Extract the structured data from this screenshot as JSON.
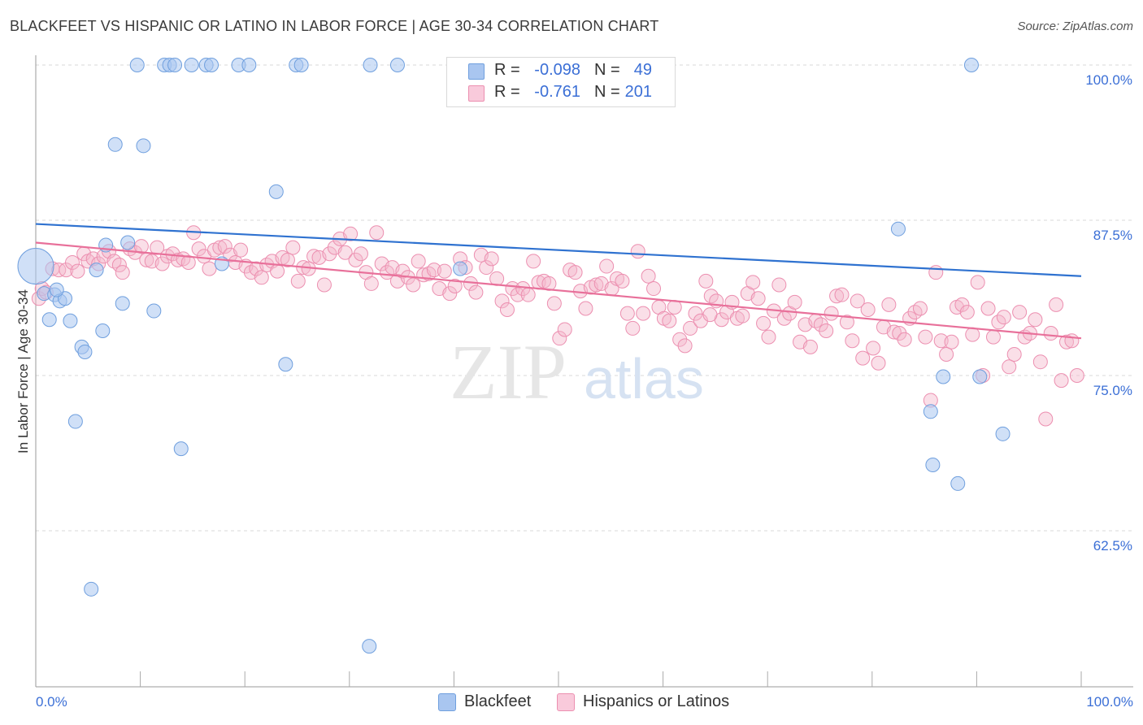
{
  "title": "BLACKFEET VS HISPANIC OR LATINO IN LABOR FORCE | AGE 30-34 CORRELATION CHART",
  "source": "Source: ZipAtlas.com",
  "legend": {
    "rows": [
      {
        "r_label": "R =",
        "r_value": "-0.098",
        "n_label": "N =",
        "n_value": "49"
      },
      {
        "r_label": "R =",
        "r_value": "-0.761",
        "n_label": "N =",
        "n_value": "201"
      }
    ]
  },
  "bottom_legend": {
    "series1": "Blackfeet",
    "series2": "Hispanics or Latinos"
  },
  "watermark": {
    "zip": "ZIP",
    "atlas": "atlas"
  },
  "colors": {
    "blackfeet_fill": "#a9c6f0",
    "blackfeet_stroke": "#6f9fde",
    "blackfeet_line": "#2f72d0",
    "hispanic_fill": "#f5b8cd",
    "hispanic_stroke": "#ec8fb0",
    "hispanic_line": "#e8709a",
    "tick_label": "#3b6fd6",
    "grid": "#d9d9d9"
  },
  "chart_data": {
    "type": "scatter",
    "title": "BLACKFEET VS HISPANIC OR LATINO IN LABOR FORCE | AGE 30-34 CORRELATION CHART",
    "xlabel": "",
    "ylabel": "In Labor Force | Age 30-34",
    "xlim": [
      0,
      100
    ],
    "ylim": [
      50,
      101
    ],
    "x_tick_labels": [
      "0.0%",
      "100.0%"
    ],
    "y_ticks": [
      62.5,
      75.0,
      87.5,
      100.0
    ],
    "y_tick_labels": [
      "62.5%",
      "75.0%",
      "87.5%",
      "100.0%"
    ],
    "grid": true,
    "series": [
      {
        "name": "Blackfeet",
        "trend": {
          "x": [
            0,
            100
          ],
          "y": [
            87.2,
            83.0
          ]
        },
        "points": [
          [
            0.0,
            83.8,
            "big"
          ],
          [
            0.8,
            81.6
          ],
          [
            1.3,
            79.5
          ],
          [
            1.8,
            81.5
          ],
          [
            2.3,
            81.0
          ],
          [
            2.8,
            81.2
          ],
          [
            3.3,
            79.4
          ],
          [
            3.8,
            71.3
          ],
          [
            4.4,
            77.3
          ],
          [
            4.7,
            76.9
          ],
          [
            5.3,
            57.8
          ],
          [
            5.8,
            83.5
          ],
          [
            6.4,
            78.6
          ],
          [
            6.7,
            85.5
          ],
          [
            7.6,
            93.6
          ],
          [
            8.3,
            80.8
          ],
          [
            8.8,
            85.7
          ],
          [
            9.7,
            100.0
          ],
          [
            10.3,
            93.5
          ],
          [
            11.3,
            80.2
          ],
          [
            12.3,
            100.0
          ],
          [
            12.8,
            100.0
          ],
          [
            13.3,
            100.0
          ],
          [
            13.9,
            69.1
          ],
          [
            14.9,
            100.0
          ],
          [
            16.3,
            100.0
          ],
          [
            16.8,
            100.0
          ],
          [
            17.8,
            84.0
          ],
          [
            19.4,
            100.0
          ],
          [
            20.4,
            100.0
          ],
          [
            23.0,
            89.8
          ],
          [
            23.9,
            75.9
          ],
          [
            24.9,
            100.0
          ],
          [
            25.4,
            100.0
          ],
          [
            31.9,
            53.2
          ],
          [
            32.0,
            100.0
          ],
          [
            34.6,
            100.0
          ],
          [
            40.6,
            83.6
          ],
          [
            41.0,
            100.0
          ],
          [
            47.0,
            100.0
          ],
          [
            82.5,
            86.8
          ],
          [
            85.6,
            72.1
          ],
          [
            85.8,
            67.8
          ],
          [
            86.8,
            74.9
          ],
          [
            88.2,
            66.3
          ],
          [
            89.5,
            100.0
          ],
          [
            90.3,
            74.9
          ],
          [
            92.5,
            70.3
          ],
          [
            2.0,
            81.9
          ]
        ]
      },
      {
        "name": "Hispanics or Latinos",
        "trend": {
          "x": [
            0,
            100
          ],
          "y": [
            85.7,
            78.0
          ]
        },
        "points": [
          [
            0.3,
            81.2
          ],
          [
            0.6,
            82.0
          ],
          [
            1.0,
            81.7
          ],
          [
            1.6,
            83.6
          ],
          [
            2.2,
            83.5
          ],
          [
            2.9,
            83.5
          ],
          [
            3.5,
            84.1
          ],
          [
            4.0,
            83.4
          ],
          [
            4.6,
            84.8
          ],
          [
            5.0,
            84.2
          ],
          [
            5.5,
            84.4
          ],
          [
            6.0,
            84.0
          ],
          [
            6.5,
            84.6
          ],
          [
            7.0,
            85.0
          ],
          [
            7.5,
            84.2
          ],
          [
            8.0,
            83.9
          ],
          [
            8.3,
            83.3
          ],
          [
            9.0,
            85.2
          ],
          [
            9.5,
            84.9
          ],
          [
            10.1,
            85.4
          ],
          [
            10.6,
            84.3
          ],
          [
            11.1,
            84.2
          ],
          [
            11.6,
            85.3
          ],
          [
            12.1,
            84.0
          ],
          [
            12.6,
            84.6
          ],
          [
            13.1,
            84.8
          ],
          [
            13.6,
            84.3
          ],
          [
            14.1,
            84.4
          ],
          [
            14.6,
            84.1
          ],
          [
            15.1,
            86.5
          ],
          [
            15.6,
            85.2
          ],
          [
            16.1,
            84.6
          ],
          [
            16.6,
            83.6
          ],
          [
            17.1,
            85.1
          ],
          [
            17.6,
            85.3
          ],
          [
            18.1,
            85.4
          ],
          [
            18.6,
            84.7
          ],
          [
            19.1,
            84.1
          ],
          [
            19.6,
            85.1
          ],
          [
            20.1,
            83.8
          ],
          [
            20.6,
            83.3
          ],
          [
            21.1,
            83.6
          ],
          [
            21.6,
            82.9
          ],
          [
            22.1,
            83.9
          ],
          [
            22.6,
            84.2
          ],
          [
            23.1,
            83.4
          ],
          [
            23.6,
            84.5
          ],
          [
            24.1,
            84.3
          ],
          [
            24.6,
            85.3
          ],
          [
            25.1,
            82.6
          ],
          [
            25.6,
            83.7
          ],
          [
            26.1,
            83.6
          ],
          [
            26.6,
            84.6
          ],
          [
            27.1,
            84.5
          ],
          [
            27.6,
            82.3
          ],
          [
            28.1,
            84.8
          ],
          [
            28.6,
            85.3
          ],
          [
            29.1,
            86.0
          ],
          [
            29.6,
            84.9
          ],
          [
            30.1,
            86.4
          ],
          [
            30.6,
            84.3
          ],
          [
            31.1,
            84.8
          ],
          [
            31.6,
            83.3
          ],
          [
            32.1,
            82.4
          ],
          [
            32.6,
            86.5
          ],
          [
            33.1,
            84.0
          ],
          [
            33.6,
            83.3
          ],
          [
            34.1,
            83.7
          ],
          [
            34.6,
            82.6
          ],
          [
            35.1,
            83.4
          ],
          [
            35.6,
            82.9
          ],
          [
            36.1,
            82.3
          ],
          [
            36.6,
            84.2
          ],
          [
            37.1,
            83.1
          ],
          [
            37.6,
            83.2
          ],
          [
            38.1,
            83.5
          ],
          [
            38.6,
            82.0
          ],
          [
            39.1,
            83.4
          ],
          [
            39.6,
            81.6
          ],
          [
            40.1,
            82.2
          ],
          [
            40.6,
            84.4
          ],
          [
            41.1,
            83.7
          ],
          [
            41.6,
            82.4
          ],
          [
            42.1,
            81.7
          ],
          [
            42.6,
            84.7
          ],
          [
            43.1,
            83.7
          ],
          [
            43.6,
            84.4
          ],
          [
            44.1,
            82.8
          ],
          [
            44.6,
            81.0
          ],
          [
            45.1,
            80.3
          ],
          [
            45.6,
            82.0
          ],
          [
            46.1,
            81.5
          ],
          [
            46.6,
            82.0
          ],
          [
            47.1,
            81.5
          ],
          [
            47.6,
            84.2
          ],
          [
            48.1,
            82.5
          ],
          [
            48.6,
            82.6
          ],
          [
            49.1,
            82.4
          ],
          [
            49.6,
            80.8
          ],
          [
            50.1,
            78.0
          ],
          [
            50.6,
            78.7
          ],
          [
            51.1,
            83.5
          ],
          [
            51.6,
            83.3
          ],
          [
            52.1,
            81.8
          ],
          [
            52.6,
            80.4
          ],
          [
            53.1,
            82.1
          ],
          [
            53.6,
            82.3
          ],
          [
            54.1,
            82.4
          ],
          [
            54.6,
            83.8
          ],
          [
            55.1,
            82.0
          ],
          [
            55.6,
            82.8
          ],
          [
            56.1,
            82.6
          ],
          [
            56.6,
            80.0
          ],
          [
            57.1,
            78.8
          ],
          [
            57.6,
            85.0
          ],
          [
            58.1,
            80.0
          ],
          [
            58.6,
            83.0
          ],
          [
            59.1,
            82.0
          ],
          [
            59.6,
            80.5
          ],
          [
            60.1,
            79.6
          ],
          [
            60.6,
            79.4
          ],
          [
            61.1,
            80.5
          ],
          [
            61.6,
            77.9
          ],
          [
            62.1,
            77.4
          ],
          [
            62.6,
            78.8
          ],
          [
            63.1,
            80.0
          ],
          [
            63.6,
            79.4
          ],
          [
            64.1,
            82.6
          ],
          [
            64.6,
            81.4
          ],
          [
            65.1,
            81.0
          ],
          [
            65.6,
            79.5
          ],
          [
            66.1,
            80.1
          ],
          [
            66.6,
            80.9
          ],
          [
            67.1,
            79.6
          ],
          [
            67.6,
            79.8
          ],
          [
            68.1,
            81.6
          ],
          [
            68.6,
            82.5
          ],
          [
            69.1,
            81.2
          ],
          [
            69.6,
            79.2
          ],
          [
            70.1,
            78.1
          ],
          [
            70.6,
            80.2
          ],
          [
            71.1,
            82.3
          ],
          [
            71.6,
            79.6
          ],
          [
            72.1,
            80.0
          ],
          [
            72.6,
            80.9
          ],
          [
            73.1,
            77.7
          ],
          [
            73.6,
            79.1
          ],
          [
            74.1,
            77.3
          ],
          [
            74.6,
            79.4
          ],
          [
            75.1,
            79.1
          ],
          [
            75.6,
            78.6
          ],
          [
            76.1,
            80.0
          ],
          [
            76.6,
            81.4
          ],
          [
            77.1,
            81.5
          ],
          [
            77.6,
            79.3
          ],
          [
            78.1,
            77.8
          ],
          [
            78.6,
            81.0
          ],
          [
            79.1,
            76.4
          ],
          [
            79.6,
            80.3
          ],
          [
            80.1,
            77.2
          ],
          [
            80.6,
            76.0
          ],
          [
            81.1,
            78.9
          ],
          [
            81.6,
            80.7
          ],
          [
            82.1,
            78.5
          ],
          [
            82.6,
            78.4
          ],
          [
            83.1,
            77.9
          ],
          [
            83.6,
            79.6
          ],
          [
            84.1,
            80.1
          ],
          [
            84.6,
            80.4
          ],
          [
            85.1,
            78.1
          ],
          [
            85.6,
            73.0
          ],
          [
            86.1,
            83.3
          ],
          [
            86.6,
            77.8
          ],
          [
            87.1,
            76.7
          ],
          [
            87.6,
            77.7
          ],
          [
            88.1,
            80.5
          ],
          [
            88.6,
            80.7
          ],
          [
            89.1,
            80.1
          ],
          [
            89.6,
            78.3
          ],
          [
            90.1,
            82.5
          ],
          [
            90.6,
            75.0
          ],
          [
            91.1,
            80.4
          ],
          [
            91.6,
            78.1
          ],
          [
            92.1,
            79.3
          ],
          [
            92.6,
            79.7
          ],
          [
            93.1,
            75.7
          ],
          [
            93.6,
            76.7
          ],
          [
            94.1,
            80.1
          ],
          [
            94.6,
            78.1
          ],
          [
            95.1,
            78.4
          ],
          [
            95.6,
            79.5
          ],
          [
            96.1,
            76.1
          ],
          [
            96.6,
            71.5
          ],
          [
            97.1,
            78.4
          ],
          [
            97.6,
            80.7
          ],
          [
            98.1,
            74.6
          ],
          [
            98.6,
            77.7
          ],
          [
            99.1,
            77.8
          ],
          [
            99.6,
            75.0
          ],
          [
            64.5,
            79.9
          ]
        ]
      }
    ]
  }
}
